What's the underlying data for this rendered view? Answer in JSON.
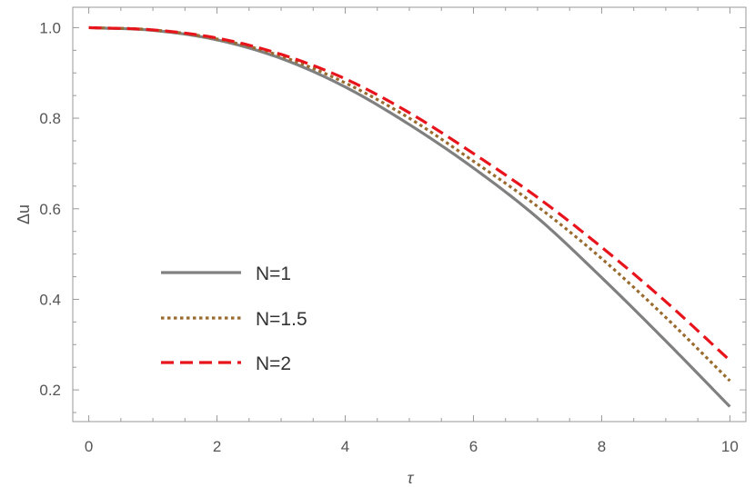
{
  "chart_data": {
    "type": "line",
    "xlabel": "τ",
    "ylabel": "Δu",
    "xlim": [
      -0.25,
      10.25
    ],
    "ylim": [
      0.13,
      1.045
    ],
    "x_ticks": [
      0,
      2,
      4,
      6,
      8,
      10
    ],
    "x_tick_labels": [
      "0",
      "2",
      "4",
      "6",
      "8",
      "10"
    ],
    "y_ticks": [
      0.2,
      0.4,
      0.6,
      0.8,
      1.0
    ],
    "y_tick_labels": [
      "0.2",
      "0.4",
      "0.6",
      "0.8",
      "1.0"
    ],
    "grid": false,
    "legend_position": "lower-left",
    "series": [
      {
        "name": "N=1",
        "color": "#808080",
        "style": "solid",
        "x": [
          0,
          1,
          2,
          3,
          4,
          5,
          6,
          7,
          8,
          9,
          10
        ],
        "y": [
          1.0,
          0.994,
          0.973,
          0.932,
          0.869,
          0.786,
          0.69,
          0.58,
          0.448,
          0.308,
          0.163
        ]
      },
      {
        "name": "N=1.5",
        "color": "#9A6B2F",
        "style": "dotted",
        "x": [
          0,
          1,
          2,
          3,
          4,
          5,
          6,
          7,
          8,
          9,
          10
        ],
        "y": [
          1.0,
          0.995,
          0.975,
          0.937,
          0.878,
          0.8,
          0.705,
          0.605,
          0.49,
          0.36,
          0.22
        ]
      },
      {
        "name": "N=2",
        "color": "#E8141C",
        "style": "dashed",
        "x": [
          0,
          1,
          2,
          3,
          4,
          5,
          6,
          7,
          8,
          9,
          10
        ],
        "y": [
          1.0,
          0.995,
          0.977,
          0.941,
          0.887,
          0.812,
          0.722,
          0.625,
          0.515,
          0.395,
          0.265
        ]
      }
    ]
  }
}
